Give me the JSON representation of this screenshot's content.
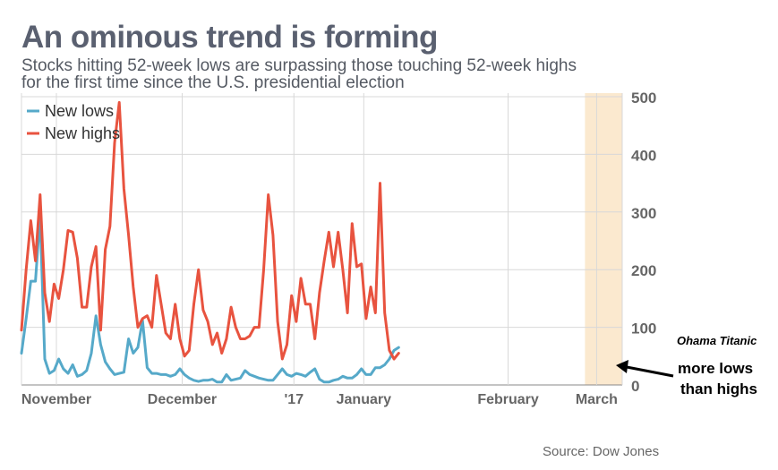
{
  "chart_data": {
    "type": "line",
    "title": "An ominous trend is forming",
    "subtitle_line1": "Stocks hitting 52-week lows are surpassing those touching 52-week highs",
    "subtitle_line2": "for the first time since the U.S. presidential election",
    "source": "Source: Dow Jones",
    "ylim": [
      0,
      500
    ],
    "y_ticks": [
      "0",
      "100",
      "200",
      "300",
      "400",
      "500"
    ],
    "x_ticks": [
      "November",
      "December",
      "'17",
      "January",
      "February",
      "March"
    ],
    "x_tick_positions": [
      7.5,
      34.5,
      58.5,
      73.5,
      104.5,
      123.5
    ],
    "x_count": 130,
    "highlight_range": [
      121,
      129
    ],
    "legend": [
      "New lows",
      "New highs"
    ],
    "series": [
      {
        "name": "New lows",
        "color": "#56a9c9",
        "values": [
          55,
          115,
          180,
          180,
          295,
          45,
          20,
          25,
          45,
          28,
          20,
          35,
          15,
          18,
          25,
          55,
          120,
          70,
          40,
          28,
          18,
          20,
          22,
          80,
          55,
          65,
          112,
          30,
          20,
          20,
          18,
          18,
          15,
          18,
          28,
          18,
          12,
          8,
          6,
          8,
          8,
          10,
          5,
          5,
          18,
          8,
          10,
          12,
          25,
          18,
          15,
          12,
          10,
          8,
          8,
          18,
          28,
          18,
          15,
          20,
          18,
          15,
          22,
          28,
          10,
          5,
          5,
          8,
          10,
          15,
          12,
          12,
          18,
          28,
          18,
          18,
          30,
          30,
          35,
          45,
          60,
          65
        ]
      },
      {
        "name": "New highs",
        "color": "#e8533f",
        "values": [
          95,
          200,
          285,
          215,
          330,
          160,
          110,
          175,
          150,
          200,
          268,
          265,
          220,
          135,
          135,
          205,
          240,
          95,
          235,
          275,
          420,
          490,
          340,
          260,
          170,
          100,
          115,
          120,
          100,
          190,
          140,
          90,
          80,
          140,
          80,
          50,
          60,
          140,
          200,
          130,
          110,
          70,
          90,
          55,
          80,
          135,
          100,
          80,
          80,
          85,
          100,
          100,
          200,
          330,
          260,
          110,
          45,
          70,
          155,
          110,
          185,
          140,
          140,
          80,
          160,
          215,
          265,
          205,
          265,
          200,
          125,
          280,
          205,
          210,
          115,
          170,
          125,
          350,
          125,
          60,
          45,
          55
        ]
      }
    ],
    "annotations": {
      "name": "Ohama Titanic",
      "line1": "more lows",
      "line2": "than highs"
    }
  }
}
